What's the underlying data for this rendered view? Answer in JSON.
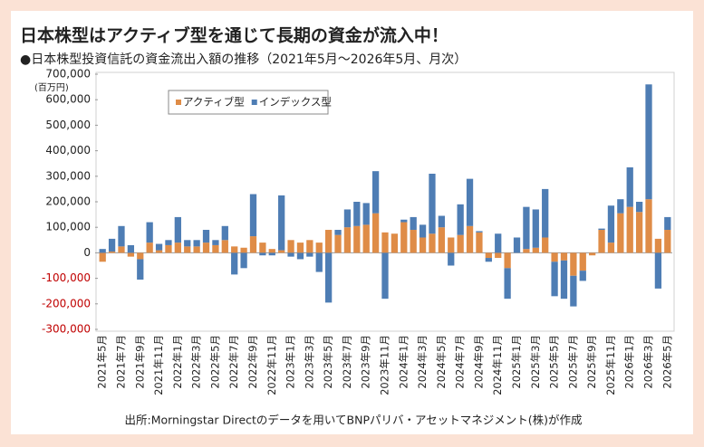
{
  "chart_data": {
    "type": "bar",
    "stacked": true,
    "title": "日本株型はアクティブ型を通じて長期の資金が流入中！",
    "subtitle": "●日本株型投資信託の資金流出入額の推移（2021年5月～2026年5月、月次）",
    "ylabel": "(百万円)",
    "source": "出所:Morningstar Directのデータを用いてBNPパリバ・アセットマネジメント(株)が作成",
    "categories": [
      "2021年5月",
      null,
      "2021年7月",
      null,
      "2021年9月",
      null,
      "2021年11月",
      null,
      "2022年1月",
      null,
      "2022年3月",
      null,
      "2022年5月",
      null,
      "2022年7月",
      null,
      "2022年9月",
      null,
      "2022年11月",
      null,
      "2023年1月",
      null,
      "2023年3月",
      null,
      "2023年5月",
      null,
      "2023年7月",
      null,
      "2023年9月",
      null,
      "2023年11月",
      null,
      "2024年1月",
      null,
      "2024年3月",
      null,
      "2024年5月",
      null,
      "2024年7月",
      null,
      "2024年9月",
      null,
      "2024年11月",
      null,
      "2025年1月",
      null,
      "2025年3月",
      null,
      "2025年5月",
      null,
      "2025年7月",
      null,
      "2025年9月",
      null,
      "2025年11月",
      null,
      "2026年1月",
      null,
      "2026年3月",
      null,
      "2026年5月"
    ],
    "series": [
      {
        "name": "アクティブ型",
        "color": "#df8c47",
        "values": [
          -35000,
          5000,
          25000,
          -15000,
          -25000,
          40000,
          10000,
          30000,
          40000,
          25000,
          25000,
          40000,
          30000,
          50000,
          25000,
          20000,
          65000,
          40000,
          15000,
          10000,
          50000,
          40000,
          50000,
          40000,
          90000,
          70000,
          100000,
          105000,
          110000,
          155000,
          80000,
          75000,
          120000,
          90000,
          60000,
          75000,
          100000,
          60000,
          70000,
          105000,
          80000,
          -20000,
          -20000,
          -60000,
          0,
          15000,
          20000,
          60000,
          -35000,
          -30000,
          -90000,
          -70000,
          -10000,
          90000,
          40000,
          155000,
          180000,
          160000,
          210000,
          55000,
          90000
        ]
      },
      {
        "name": "インデックス型",
        "color": "#4e7db4",
        "values": [
          15000,
          50000,
          80000,
          30000,
          -80000,
          80000,
          25000,
          20000,
          100000,
          25000,
          25000,
          50000,
          20000,
          55000,
          -85000,
          -60000,
          165000,
          -10000,
          -10000,
          215000,
          -15000,
          -25000,
          -15000,
          -75000,
          -195000,
          20000,
          70000,
          95000,
          85000,
          165000,
          -180000,
          0,
          10000,
          50000,
          50000,
          235000,
          45000,
          -50000,
          120000,
          185000,
          5000,
          -15000,
          75000,
          -120000,
          60000,
          165000,
          150000,
          190000,
          -135000,
          -150000,
          -120000,
          -40000,
          0,
          5000,
          145000,
          55000,
          155000,
          40000,
          450000,
          -140000,
          50000
        ]
      }
    ],
    "ylim": [
      -300000,
      700000
    ],
    "yticks": [
      {
        "value": -300000,
        "label": "-300,000"
      },
      {
        "value": -200000,
        "label": "-200,000"
      },
      {
        "value": -100000,
        "label": "-100,000"
      },
      0,
      {
        "value": 100000,
        "label": "100,000"
      },
      {
        "value": 200000,
        "label": "200,000"
      },
      {
        "value": 300000,
        "label": "300,000"
      },
      {
        "value": 400000,
        "label": "400,000"
      },
      {
        "value": 500000,
        "label": "500,000"
      },
      {
        "value": 600000,
        "label": "600,000"
      },
      {
        "value": 700000,
        "label": "700,000"
      }
    ],
    "grid": false,
    "legend": "upper left"
  }
}
